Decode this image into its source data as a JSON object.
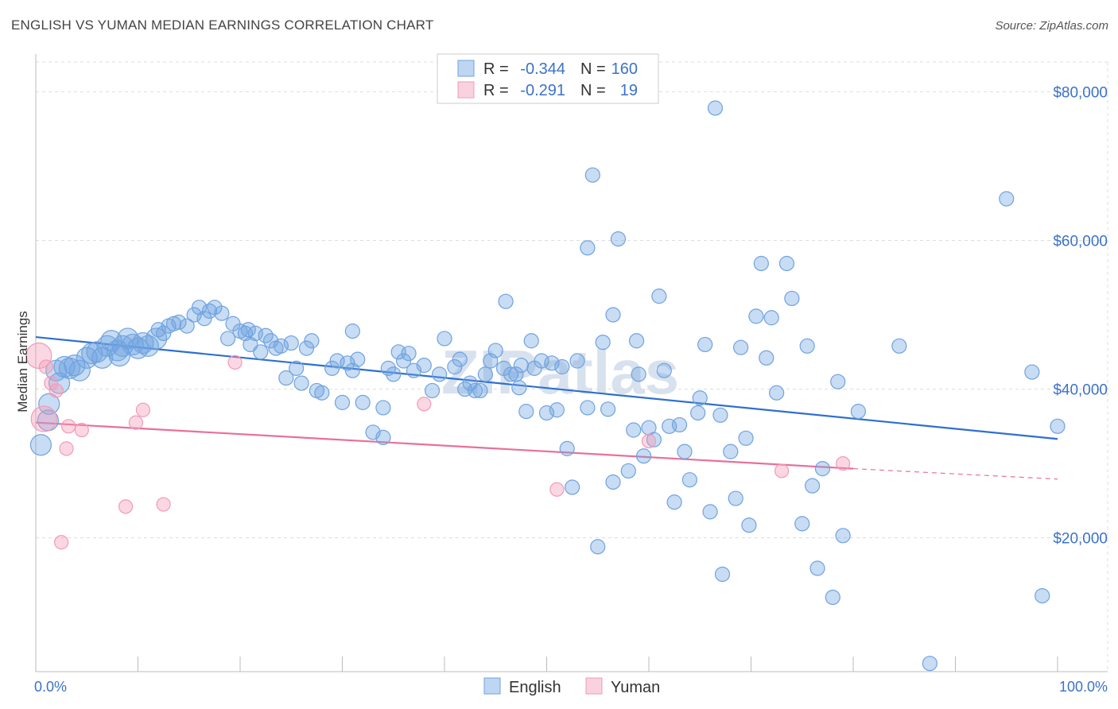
{
  "title": "ENGLISH VS YUMAN MEDIAN EARNINGS CORRELATION CHART",
  "source": "Source: ZipAtlas.com",
  "watermark": "ZIPatlas",
  "colors": {
    "english": "#6fa3e0",
    "english_line": "#2f6fcf",
    "yuman": "#f29bb7",
    "yuman_line": "#e8709a",
    "axis_text": "#3b72c9",
    "grid": "#dddddd"
  },
  "legend": {
    "rows": [
      {
        "r_label": "R =",
        "r_value": "-0.344",
        "n_label": "N =",
        "n_value": "160"
      },
      {
        "r_label": "R =",
        "r_value": "-0.291",
        "n_label": "N =",
        "n_value": "19"
      }
    ]
  },
  "chart_data": {
    "type": "scatter",
    "title": "ENGLISH VS YUMAN MEDIAN EARNINGS CORRELATION CHART",
    "xlabel": "",
    "ylabel": "Median Earnings",
    "xlim": [
      0,
      100
    ],
    "ylim": [
      2000,
      84000
    ],
    "x_tick_labels": [
      "0.0%",
      "100.0%"
    ],
    "y_ticks": [
      20000,
      40000,
      60000,
      80000
    ],
    "y_tick_labels": [
      "$20,000",
      "$40,000",
      "$60,000",
      "$80,000"
    ],
    "grid": true,
    "legend_position": "top-center",
    "series": [
      {
        "name": "English",
        "r": -0.344,
        "n": 160,
        "trend": {
          "x0": 0,
          "y0": 47000,
          "x1": 100,
          "y1": 33300
        },
        "points": [
          [
            0.5,
            32500
          ],
          [
            1.2,
            35800
          ],
          [
            1.3,
            38000
          ],
          [
            2.0,
            42500
          ],
          [
            2.3,
            40800
          ],
          [
            2.8,
            43000
          ],
          [
            3.3,
            42800
          ],
          [
            3.8,
            43200
          ],
          [
            4.3,
            42500
          ],
          [
            5.0,
            44200
          ],
          [
            5.5,
            44800
          ],
          [
            6.0,
            45000
          ],
          [
            6.5,
            44200
          ],
          [
            7.0,
            45800
          ],
          [
            7.4,
            46500
          ],
          [
            8.0,
            45200
          ],
          [
            8.5,
            45800
          ],
          [
            9.0,
            46800
          ],
          [
            9.5,
            46000
          ],
          [
            10.0,
            45500
          ],
          [
            10.5,
            46200
          ],
          [
            11.0,
            45800
          ],
          [
            12.0,
            48000
          ],
          [
            12.5,
            47500
          ],
          [
            13.0,
            48500
          ],
          [
            14.0,
            49000
          ],
          [
            14.8,
            48500
          ],
          [
            15.5,
            50000
          ],
          [
            16.0,
            51000
          ],
          [
            16.5,
            49500
          ],
          [
            17.0,
            50500
          ],
          [
            17.5,
            51000
          ],
          [
            18.2,
            50200
          ],
          [
            19.3,
            48800
          ],
          [
            18.8,
            46800
          ],
          [
            20.0,
            47800
          ],
          [
            20.5,
            47500
          ],
          [
            21.0,
            46000
          ],
          [
            21.5,
            47500
          ],
          [
            22.0,
            45000
          ],
          [
            22.5,
            47200
          ],
          [
            23.0,
            46500
          ],
          [
            23.5,
            45500
          ],
          [
            24.0,
            45800
          ],
          [
            25.0,
            46200
          ],
          [
            24.5,
            41500
          ],
          [
            25.5,
            42800
          ],
          [
            26.0,
            40800
          ],
          [
            26.5,
            45500
          ],
          [
            27.0,
            46500
          ],
          [
            27.5,
            39800
          ],
          [
            28.0,
            39500
          ],
          [
            29.0,
            42800
          ],
          [
            29.5,
            43800
          ],
          [
            30.0,
            38200
          ],
          [
            30.5,
            43500
          ],
          [
            31.0,
            47800
          ],
          [
            31.5,
            44000
          ],
          [
            32.0,
            38200
          ],
          [
            31.0,
            42500
          ],
          [
            33.0,
            34200
          ],
          [
            34.0,
            33500
          ],
          [
            34.5,
            42800
          ],
          [
            35.0,
            42000
          ],
          [
            35.5,
            45000
          ],
          [
            36.0,
            43800
          ],
          [
            36.5,
            44800
          ],
          [
            37.0,
            42500
          ],
          [
            38.0,
            43200
          ],
          [
            38.8,
            39800
          ],
          [
            39.5,
            42000
          ],
          [
            40.0,
            46800
          ],
          [
            41.0,
            43000
          ],
          [
            41.5,
            44000
          ],
          [
            42.0,
            40000
          ],
          [
            42.5,
            40800
          ],
          [
            43.0,
            39800
          ],
          [
            43.5,
            39800
          ],
          [
            44.0,
            42000
          ],
          [
            44.5,
            43800
          ],
          [
            45.0,
            45200
          ],
          [
            45.8,
            42800
          ],
          [
            46.0,
            51800
          ],
          [
            46.5,
            42000
          ],
          [
            47.0,
            42000
          ],
          [
            47.5,
            43200
          ],
          [
            48.0,
            37000
          ],
          [
            48.5,
            46500
          ],
          [
            48.8,
            42800
          ],
          [
            49.5,
            43800
          ],
          [
            50.0,
            36800
          ],
          [
            50.5,
            43500
          ],
          [
            51.0,
            37200
          ],
          [
            51.5,
            43000
          ],
          [
            52.0,
            32000
          ],
          [
            53.0,
            43800
          ],
          [
            52.5,
            26800
          ],
          [
            54.0,
            37500
          ],
          [
            54.5,
            68800
          ],
          [
            54.0,
            59000
          ],
          [
            55.0,
            18800
          ],
          [
            55.5,
            46300
          ],
          [
            56.0,
            37300
          ],
          [
            56.5,
            50000
          ],
          [
            56.5,
            27500
          ],
          [
            57.0,
            60200
          ],
          [
            58.0,
            29000
          ],
          [
            58.5,
            34500
          ],
          [
            58.8,
            46500
          ],
          [
            59.0,
            42000
          ],
          [
            59.5,
            31000
          ],
          [
            60.0,
            34800
          ],
          [
            60.5,
            33200
          ],
          [
            61.0,
            52500
          ],
          [
            61.5,
            42500
          ],
          [
            62.0,
            35000
          ],
          [
            62.5,
            24800
          ],
          [
            63.0,
            35200
          ],
          [
            63.5,
            31600
          ],
          [
            64.0,
            27800
          ],
          [
            64.8,
            36800
          ],
          [
            65.0,
            38800
          ],
          [
            65.5,
            46000
          ],
          [
            66.0,
            23500
          ],
          [
            66.5,
            77800
          ],
          [
            67.0,
            36500
          ],
          [
            67.2,
            15100
          ],
          [
            68.0,
            31600
          ],
          [
            68.5,
            25300
          ],
          [
            69.0,
            45600
          ],
          [
            69.5,
            33400
          ],
          [
            69.8,
            21700
          ],
          [
            70.5,
            49800
          ],
          [
            71.0,
            56900
          ],
          [
            71.5,
            44200
          ],
          [
            72.0,
            49600
          ],
          [
            72.5,
            39500
          ],
          [
            73.5,
            56900
          ],
          [
            74.0,
            52200
          ],
          [
            75.0,
            21900
          ],
          [
            75.5,
            45800
          ],
          [
            76.0,
            27000
          ],
          [
            76.5,
            15900
          ],
          [
            77.0,
            29300
          ],
          [
            78.0,
            12000
          ],
          [
            78.5,
            41000
          ],
          [
            79.0,
            20300
          ],
          [
            80.5,
            37000
          ],
          [
            84.5,
            45800
          ],
          [
            87.5,
            3100
          ],
          [
            95.0,
            65600
          ],
          [
            97.5,
            42300
          ],
          [
            98.5,
            12200
          ],
          [
            100.0,
            35000
          ],
          [
            8.2,
            44500
          ],
          [
            13.5,
            48800
          ],
          [
            20.8,
            48000
          ],
          [
            11.8,
            46800
          ],
          [
            34.0,
            37500
          ],
          [
            47.3,
            40200
          ]
        ]
      },
      {
        "name": "Yuman",
        "r": -0.291,
        "n": 19,
        "trend": {
          "x0": 0,
          "y0": 35500,
          "x1": 80,
          "y1": 29300
        },
        "trend_extension": {
          "x0": 80,
          "y0": 29300,
          "x1": 100,
          "y1": 27900
        },
        "points": [
          [
            0.3,
            44500
          ],
          [
            0.8,
            36000
          ],
          [
            1.0,
            43000
          ],
          [
            1.5,
            40800
          ],
          [
            2.0,
            39800
          ],
          [
            2.5,
            19400
          ],
          [
            3.0,
            32000
          ],
          [
            3.2,
            35000
          ],
          [
            4.5,
            34500
          ],
          [
            8.8,
            24200
          ],
          [
            9.8,
            35500
          ],
          [
            10.5,
            37200
          ],
          [
            12.5,
            24500
          ],
          [
            19.5,
            43600
          ],
          [
            38.0,
            38000
          ],
          [
            51.0,
            26500
          ],
          [
            60.0,
            33000
          ],
          [
            73.0,
            29000
          ],
          [
            79.0,
            30000
          ]
        ]
      }
    ]
  }
}
